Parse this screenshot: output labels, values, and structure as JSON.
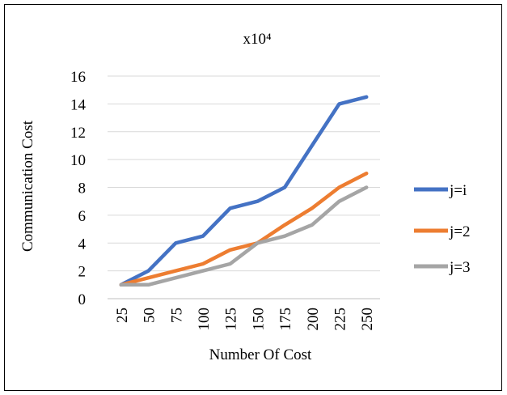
{
  "chart_data": {
    "type": "line",
    "title": "x10⁴",
    "xlabel": "Number Of Cost",
    "ylabel": "Communication Cost",
    "categories": [
      "25",
      "50",
      "75",
      "100",
      "125",
      "150",
      "175",
      "200",
      "225",
      "250"
    ],
    "ylim": [
      0,
      16
    ],
    "yticks": [
      "0",
      "2",
      "4",
      "6",
      "8",
      "10",
      "12",
      "14",
      "16"
    ],
    "grid": true,
    "legend_position": "right",
    "series": [
      {
        "name": "j=i",
        "color": "#4472C4",
        "values": [
          1,
          2,
          4,
          4.5,
          6.5,
          7,
          8,
          11,
          14,
          14.5
        ]
      },
      {
        "name": "j=2",
        "color": "#ED7D31",
        "values": [
          1,
          1.5,
          2,
          2.5,
          3.5,
          4,
          5.3,
          6.5,
          8,
          9
        ]
      },
      {
        "name": "j=3",
        "color": "#A5A5A5",
        "values": [
          1,
          1,
          1.5,
          2,
          2.5,
          4,
          4.5,
          5.3,
          7,
          8
        ]
      }
    ]
  }
}
